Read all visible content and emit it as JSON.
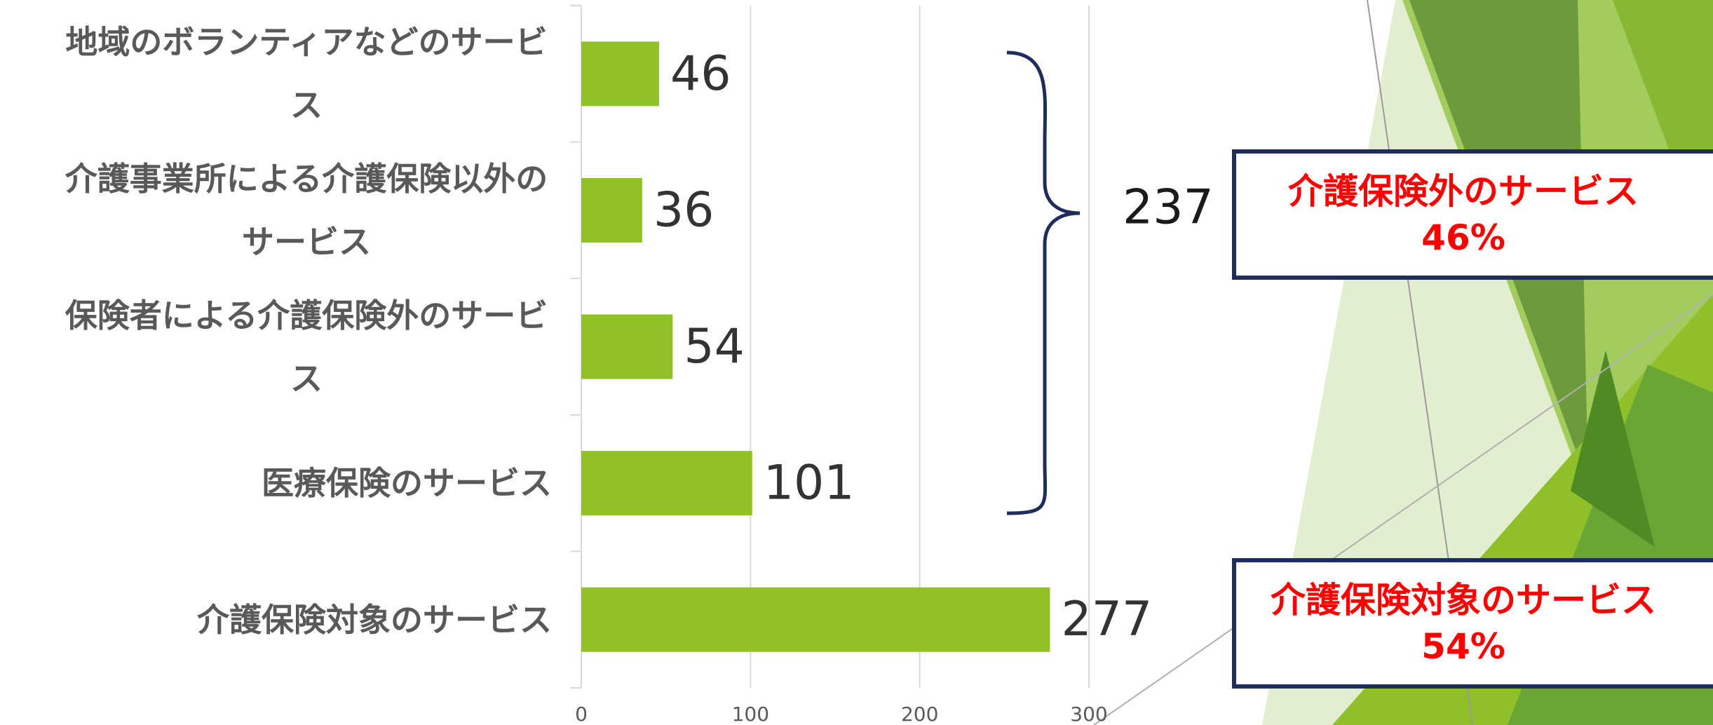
{
  "chart_data": {
    "type": "bar",
    "orientation": "horizontal",
    "categories": [
      "地域のボランティアなどのサービス",
      "介護事業所による介護保険以外のサービス",
      "保険者による介護保険外のサービス",
      "医療保険のサービス",
      "介護保険対象のサービス"
    ],
    "values": [
      46,
      36,
      54,
      101,
      277
    ],
    "color": "#90c226",
    "xlim": [
      0,
      300
    ],
    "xticks": [
      0,
      100,
      200,
      300
    ],
    "grid": true
  },
  "annotations": {
    "brace_total": "237",
    "boxes": [
      {
        "title": "介護保険外のサービス",
        "share": "46%"
      },
      {
        "title": "介護保険対象のサービス",
        "share": "54%"
      }
    ]
  }
}
